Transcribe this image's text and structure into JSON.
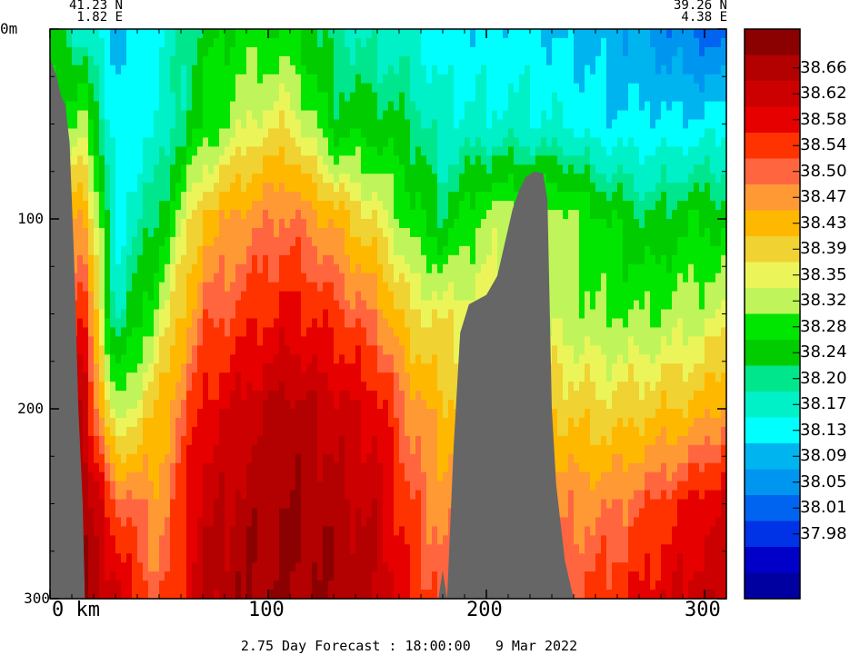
{
  "header": {
    "left_lat": "41.23 N",
    "left_lon": "1.82 E",
    "right_lat": "39.26 N",
    "right_lon": "4.38 E"
  },
  "caption": "2.75 Day Forecast : 18:00:00   9 Mar 2022",
  "chart_data": {
    "type": "heatmap",
    "title": "",
    "xlabel": "km",
    "ylabel": "",
    "xlim": [
      0,
      310
    ],
    "ylim": [
      300,
      0
    ],
    "x_ticks": [
      {
        "value": 0,
        "label": "0 km"
      },
      {
        "value": 100,
        "label": "100"
      },
      {
        "value": 200,
        "label": "200"
      },
      {
        "value": 300,
        "label": "300"
      }
    ],
    "y_ticks": [
      {
        "value": 0,
        "label": "0m"
      },
      {
        "value": 100,
        "label": "100"
      },
      {
        "value": 200,
        "label": "200"
      },
      {
        "value": 300,
        "label": "300"
      }
    ],
    "colorbar": {
      "labels": [
        "38.66",
        "38.62",
        "38.58",
        "38.54",
        "38.50",
        "38.47",
        "38.43",
        "38.39",
        "38.35",
        "38.32",
        "38.28",
        "38.24",
        "38.20",
        "38.17",
        "38.13",
        "38.09",
        "38.05",
        "38.01",
        "37.98"
      ],
      "colors": [
        "#8b0000",
        "#b30000",
        "#cc0000",
        "#e60000",
        "#ff3300",
        "#ff6640",
        "#ff9933",
        "#ffb800",
        "#f0d232",
        "#ebf55a",
        "#bff55a",
        "#00e600",
        "#00cc00",
        "#00e68c",
        "#00f0c8",
        "#00ffff",
        "#00b4f0",
        "#0096f0",
        "#0064f0",
        "#0032e6",
        "#0000c8",
        "#0000a0"
      ]
    },
    "bathymetry": [
      {
        "x": 0,
        "d": 15
      },
      {
        "x": 3,
        "d": 25
      },
      {
        "x": 5,
        "d": 35
      },
      {
        "x": 7,
        "d": 40
      },
      {
        "x": 9,
        "d": 60
      },
      {
        "x": 11,
        "d": 120
      },
      {
        "x": 13,
        "d": 200
      },
      {
        "x": 15,
        "d": 250
      },
      {
        "x": 16,
        "d": 300
      },
      {
        "x": 178,
        "d": 300
      },
      {
        "x": 180,
        "d": 285
      },
      {
        "x": 182,
        "d": 300
      },
      {
        "x": 185,
        "d": 220
      },
      {
        "x": 188,
        "d": 160
      },
      {
        "x": 192,
        "d": 145
      },
      {
        "x": 200,
        "d": 140
      },
      {
        "x": 205,
        "d": 130
      },
      {
        "x": 208,
        "d": 115
      },
      {
        "x": 212,
        "d": 95
      },
      {
        "x": 215,
        "d": 85
      },
      {
        "x": 218,
        "d": 78
      },
      {
        "x": 222,
        "d": 75
      },
      {
        "x": 226,
        "d": 76
      },
      {
        "x": 228,
        "d": 90
      },
      {
        "x": 230,
        "d": 200
      },
      {
        "x": 232,
        "d": 240
      },
      {
        "x": 236,
        "d": 280
      },
      {
        "x": 240,
        "d": 300
      }
    ],
    "salinity_field": {
      "depths": [
        0,
        50,
        100,
        150,
        200,
        250,
        300
      ],
      "x": [
        5,
        15,
        30,
        50,
        70,
        90,
        110,
        130,
        150,
        165,
        180,
        200,
        215,
        235,
        255,
        275,
        295,
        310
      ],
      "values": [
        [
          38.2,
          38.15,
          38.08,
          38.12,
          38.22,
          38.25,
          38.24,
          38.18,
          38.15,
          38.14,
          38.1,
          38.1,
          38.1,
          38.08,
          38.07,
          38.04,
          38.0,
          37.98
        ],
        [
          38.25,
          38.3,
          38.1,
          38.13,
          38.24,
          38.32,
          38.35,
          38.22,
          38.22,
          38.2,
          38.14,
          38.14,
          38.14,
          38.13,
          38.1,
          38.1,
          38.1,
          38.12
        ],
        [
          38.4,
          38.45,
          38.12,
          38.2,
          38.4,
          38.45,
          38.48,
          38.42,
          38.34,
          38.26,
          38.2,
          38.3,
          38.3,
          38.3,
          38.24,
          38.2,
          38.24,
          38.22
        ],
        [
          38.5,
          38.55,
          38.15,
          38.3,
          38.48,
          38.52,
          38.55,
          38.52,
          38.46,
          38.36,
          38.34,
          38.34,
          38.34,
          38.3,
          38.28,
          38.28,
          38.3,
          38.32
        ],
        [
          38.58,
          38.62,
          38.28,
          38.4,
          38.55,
          38.6,
          38.64,
          38.6,
          38.56,
          38.46,
          38.4,
          38.4,
          38.4,
          38.38,
          38.36,
          38.38,
          38.4,
          38.44
        ],
        [
          38.62,
          38.66,
          38.5,
          38.44,
          38.6,
          38.64,
          38.66,
          38.64,
          38.6,
          38.5,
          38.45,
          38.45,
          38.45,
          38.46,
          38.46,
          38.5,
          38.55,
          38.58
        ],
        [
          38.64,
          38.66,
          38.6,
          38.48,
          38.62,
          38.66,
          38.66,
          38.66,
          38.62,
          38.54,
          38.48,
          38.48,
          38.48,
          38.5,
          38.52,
          38.56,
          38.6,
          38.62
        ]
      ]
    }
  }
}
